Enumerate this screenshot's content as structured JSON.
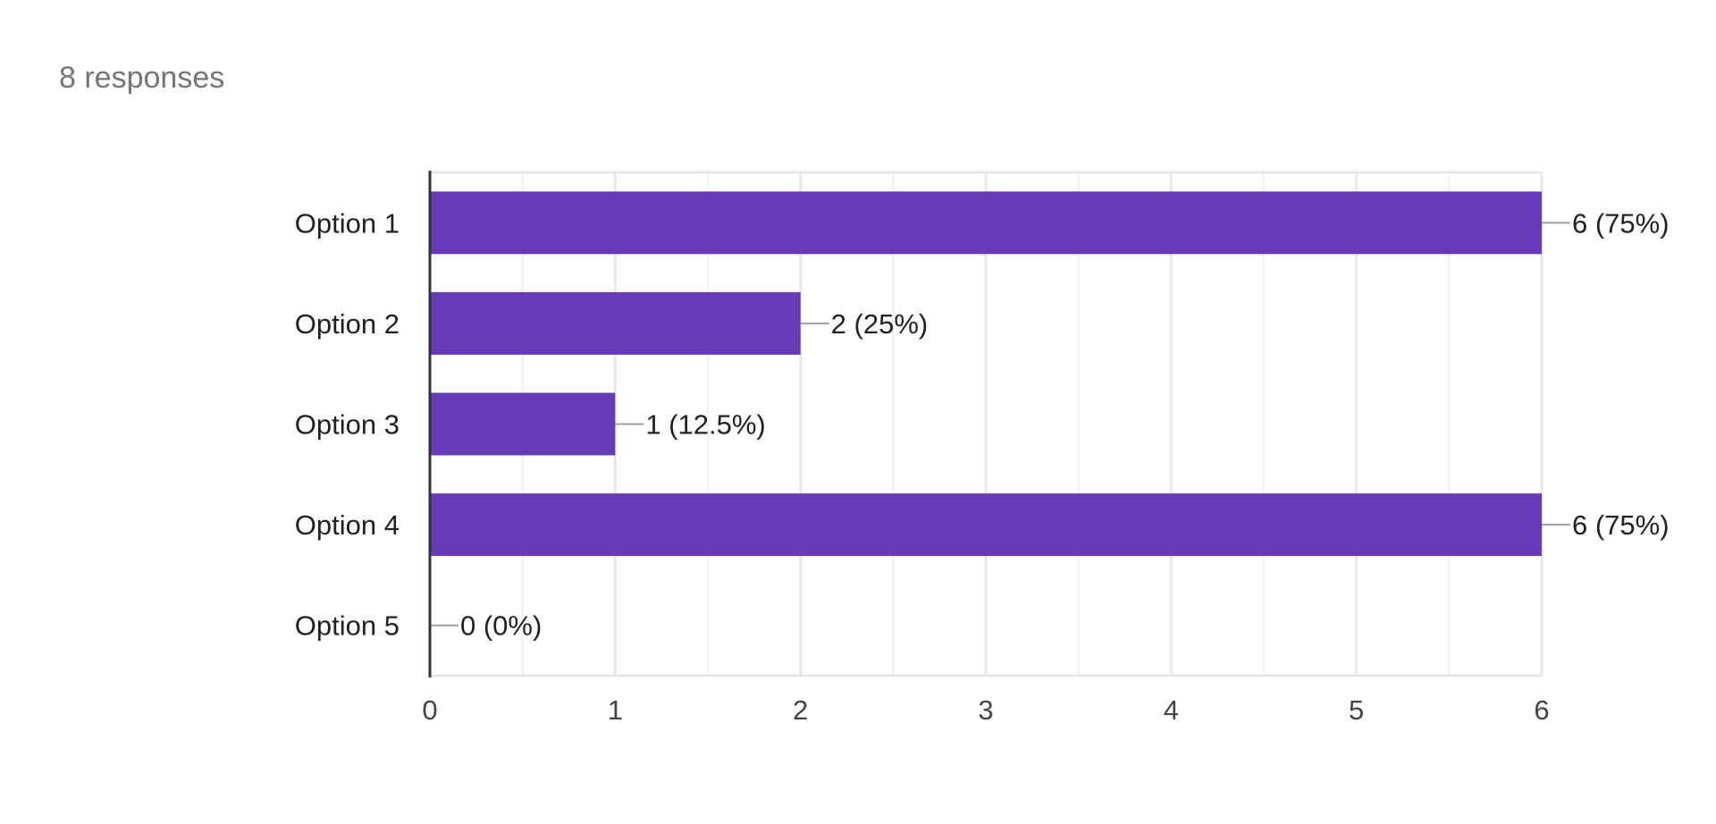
{
  "summary": {
    "responses_text": "8 responses"
  },
  "colors": {
    "bar": "#673ab7",
    "grid_major": "#e5e5e5",
    "grid_minor": "#f1f1f1",
    "axis": "#333333",
    "label_text": "#212121",
    "tick_text": "#444444",
    "leader": "#9e9e9e"
  },
  "chart_data": {
    "type": "bar",
    "orientation": "horizontal",
    "title": "",
    "xlabel": "",
    "ylabel": "",
    "categories": [
      "Option 1",
      "Option 2",
      "Option 3",
      "Option 4",
      "Option 5"
    ],
    "values": [
      6,
      2,
      1,
      6,
      0
    ],
    "data_labels": [
      "6 (75%)",
      "2 (25%)",
      "1 (12.5%)",
      "6 (75%)",
      "0 (0%)"
    ],
    "xlim": [
      0,
      6
    ],
    "x_ticks": [
      "0",
      "1",
      "2",
      "3",
      "4",
      "5",
      "6"
    ],
    "grid": true,
    "legend": "none"
  }
}
